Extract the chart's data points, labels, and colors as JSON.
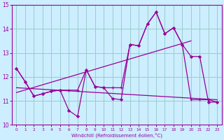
{
  "background_color": "#cceeff",
  "grid_color": "#99cccc",
  "line_color": "#990099",
  "xlim": [
    -0.5,
    23.5
  ],
  "ylim": [
    10,
    15
  ],
  "yticks": [
    10,
    11,
    12,
    13,
    14,
    15
  ],
  "xticks": [
    0,
    1,
    2,
    3,
    4,
    5,
    6,
    7,
    8,
    9,
    10,
    11,
    12,
    13,
    14,
    15,
    16,
    17,
    18,
    19,
    20,
    21,
    22,
    23
  ],
  "xlabel": "Windchill (Refroidissement éolien,°C)",
  "line_a_x": [
    0,
    1,
    2,
    3,
    4,
    5,
    6,
    7,
    8,
    9,
    10,
    11,
    12,
    13,
    14,
    15,
    16,
    17,
    18,
    19,
    20,
    21,
    22,
    23
  ],
  "line_a_y": [
    12.35,
    11.8,
    11.2,
    11.3,
    11.4,
    11.45,
    10.6,
    10.35,
    12.3,
    11.6,
    11.55,
    11.1,
    11.05,
    13.35,
    13.3,
    14.2,
    14.7,
    13.8,
    14.05,
    13.35,
    12.85,
    12.85,
    10.95,
    10.95
  ],
  "line_b_x": [
    0,
    1,
    2,
    3,
    4,
    5,
    6,
    7,
    8,
    9,
    10,
    11,
    12,
    13,
    14,
    15,
    16,
    17,
    18,
    19,
    20,
    21,
    22,
    23
  ],
  "line_b_y": [
    12.35,
    11.8,
    11.2,
    11.3,
    11.4,
    11.45,
    11.45,
    11.45,
    12.3,
    11.6,
    11.55,
    11.55,
    11.55,
    13.35,
    13.3,
    14.2,
    14.7,
    13.8,
    14.05,
    13.35,
    11.05,
    11.05,
    11.05,
    10.95
  ],
  "trend1_x": [
    0,
    23
  ],
  "trend1_y": [
    11.55,
    11.05
  ],
  "trend2_x": [
    0,
    20
  ],
  "trend2_y": [
    11.35,
    13.5
  ]
}
